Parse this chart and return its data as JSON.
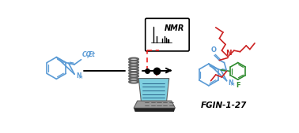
{
  "bg_color": "#ffffff",
  "blue": "#5b9bd5",
  "red": "#cc2222",
  "green": "#2e8b2e",
  "gray": "#606060",
  "black": "#000000",
  "dashed_color": "#ee1111",
  "laptop_screen": "#7ecfe0",
  "laptop_body": "#b0b0b0",
  "laptop_keys": "#333333",
  "nmr_label": "NMR",
  "fgin_label": "FGIN-1-27",
  "co2et_label": "CO2Et",
  "figsize": [
    3.78,
    1.69
  ],
  "dpi": 100
}
